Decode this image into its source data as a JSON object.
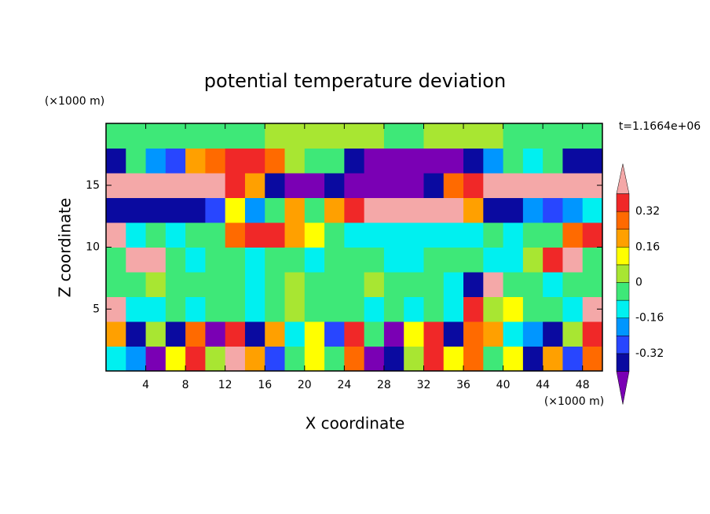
{
  "chart_data": {
    "type": "contour",
    "title": "potential temperature deviation",
    "x_label": "X coordinate",
    "y_label": "Z coordinate",
    "x_unit": "(×1000 m)",
    "y_unit": "(×1000 m)",
    "annotation": "t=1.1664e+06",
    "xlim": [
      0,
      50
    ],
    "ylim": [
      0,
      20
    ],
    "xticks": [
      4,
      8,
      12,
      16,
      20,
      24,
      28,
      32,
      36,
      40,
      44,
      48
    ],
    "yticks": [
      5,
      10,
      15
    ],
    "levels": [
      -0.4,
      -0.32,
      -0.24,
      -0.16,
      -0.08,
      0,
      0.08,
      0.16,
      0.24,
      0.32,
      0.4
    ],
    "colorbar_ticks": [
      -0.32,
      -0.16,
      0,
      0.16,
      0.32
    ],
    "level_colors": [
      "#7a00b4",
      "#0a0aa0",
      "#2846ff",
      "#0096ff",
      "#00f0f0",
      "#3ee878",
      "#a8e632",
      "#ffff00",
      "#ffa000",
      "#ff6a00",
      "#f02828",
      "#f4a8a8"
    ],
    "values": [
      [
        -0.12,
        -0.2,
        -0.45,
        0.12,
        0.36,
        0.04,
        0.45,
        0.2,
        -0.28,
        -0.04,
        0.12,
        -0.04,
        0.28,
        -0.45,
        -0.36,
        0.04,
        0.36,
        0.12,
        0.28,
        -0.04,
        0.12,
        -0.36,
        0.2,
        -0.28,
        0.28
      ],
      [
        0.2,
        -0.36,
        0.04,
        -0.36,
        0.28,
        -0.45,
        0.36,
        -0.36,
        0.2,
        -0.12,
        0.12,
        -0.28,
        0.36,
        -0.04,
        -0.45,
        0.12,
        0.36,
        -0.36,
        0.28,
        0.2,
        -0.12,
        -0.2,
        -0.36,
        0.04,
        0.36
      ],
      [
        0.45,
        -0.12,
        -0.12,
        -0.04,
        -0.12,
        -0.04,
        -0.04,
        -0.12,
        -0.04,
        0.04,
        -0.04,
        -0.04,
        -0.04,
        -0.12,
        -0.04,
        -0.12,
        -0.04,
        -0.12,
        0.36,
        0.04,
        0.12,
        -0.04,
        -0.04,
        -0.12,
        0.45
      ],
      [
        -0.04,
        -0.04,
        0.04,
        -0.04,
        -0.04,
        -0.04,
        -0.04,
        -0.12,
        -0.04,
        0.04,
        -0.04,
        -0.04,
        -0.04,
        0.04,
        -0.04,
        -0.04,
        -0.04,
        -0.12,
        -0.36,
        0.45,
        -0.04,
        -0.04,
        -0.12,
        -0.04,
        -0.04
      ],
      [
        -0.04,
        0.45,
        0.45,
        -0.04,
        -0.12,
        -0.04,
        -0.04,
        -0.12,
        -0.04,
        -0.04,
        -0.12,
        -0.04,
        -0.04,
        -0.04,
        -0.12,
        -0.12,
        -0.04,
        -0.04,
        -0.04,
        -0.12,
        -0.12,
        0.04,
        0.36,
        0.45,
        -0.04
      ],
      [
        0.45,
        -0.12,
        -0.04,
        -0.12,
        -0.04,
        -0.04,
        0.28,
        0.36,
        0.36,
        0.2,
        0.12,
        -0.04,
        -0.12,
        -0.12,
        -0.12,
        -0.12,
        -0.12,
        -0.12,
        -0.12,
        -0.04,
        -0.12,
        -0.04,
        -0.04,
        0.28,
        0.36
      ],
      [
        -0.36,
        -0.36,
        -0.36,
        -0.36,
        -0.36,
        -0.28,
        0.12,
        -0.2,
        -0.04,
        0.2,
        -0.04,
        0.2,
        0.36,
        0.45,
        0.45,
        0.45,
        0.45,
        0.45,
        0.2,
        -0.36,
        -0.36,
        -0.2,
        -0.28,
        -0.2,
        -0.12
      ],
      [
        0.45,
        0.45,
        0.45,
        0.45,
        0.45,
        0.45,
        0.36,
        0.2,
        -0.36,
        -0.45,
        -0.45,
        -0.36,
        -0.45,
        -0.45,
        -0.45,
        -0.45,
        -0.36,
        0.28,
        0.36,
        0.45,
        0.45,
        0.45,
        0.45,
        0.45,
        0.45
      ],
      [
        -0.36,
        -0.04,
        -0.2,
        -0.28,
        0.2,
        0.28,
        0.36,
        0.36,
        0.28,
        0.04,
        -0.04,
        -0.04,
        -0.36,
        -0.45,
        -0.45,
        -0.45,
        -0.45,
        -0.45,
        -0.36,
        -0.2,
        -0.04,
        -0.12,
        -0.04,
        -0.36,
        -0.36
      ],
      [
        -0.04,
        -0.04,
        -0.04,
        -0.04,
        -0.04,
        -0.04,
        -0.04,
        -0.04,
        0.04,
        0.04,
        0.04,
        0.04,
        0.04,
        0.04,
        -0.04,
        -0.04,
        0.04,
        0.04,
        0.04,
        0.04,
        -0.04,
        -0.04,
        -0.04,
        -0.04,
        -0.04
      ]
    ]
  }
}
